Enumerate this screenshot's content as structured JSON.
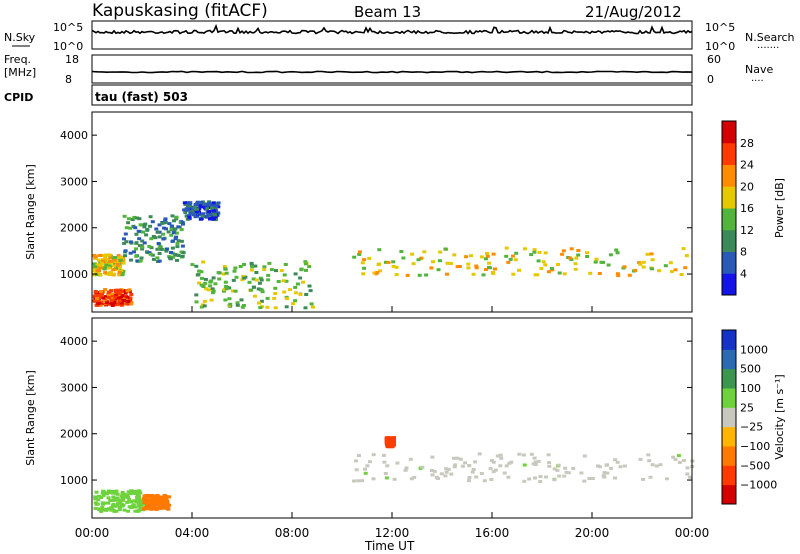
{
  "header": {
    "radar": "Kapuskasing (fitACF)",
    "beam": "Beam 13",
    "date": "21/Aug/2012"
  },
  "noise_panel": {
    "left_label": "N.Sky",
    "right_label": "N.Search",
    "left_ticks": [
      "10^5",
      "10^0"
    ],
    "right_ticks": [
      "10^5",
      "10^0"
    ],
    "right_dots": "......."
  },
  "freq_panel": {
    "left_label_1": "Freq.",
    "left_label_2": "[MHz]",
    "right_label": "Nave",
    "left_ticks": [
      "18",
      "8"
    ],
    "right_ticks": [
      "60",
      "0"
    ],
    "right_dots": "...."
  },
  "cpid": {
    "label": "CPID",
    "mode": "tau (fast) 503"
  },
  "chart_data": [
    {
      "type": "heatmap",
      "name": "power",
      "ylabel": "Slant Range [km]",
      "yticks": [
        "1000",
        "2000",
        "3000",
        "4000"
      ],
      "ylim": [
        180,
        4500
      ],
      "xlim_hours": [
        0,
        24
      ],
      "colorbar_label": "Power [dB]",
      "colorbar_ticks": [
        "4",
        "8",
        "12",
        "16",
        "20",
        "24",
        "28"
      ],
      "colors": [
        "#1414e6",
        "#2a5ab8",
        "#3c8a5a",
        "#52b43c",
        "#e6c800",
        "#ff8c00",
        "#ff3c00",
        "#d20000"
      ],
      "echo_bands": [
        {
          "t": [
            0.0,
            1.2
          ],
          "range_km": [
            1000,
            1450
          ],
          "power_db": 20
        },
        {
          "t": [
            1.2,
            3.6
          ],
          "range_km": [
            1300,
            2300
          ],
          "power_db": 12
        },
        {
          "t": [
            3.6,
            5.0
          ],
          "range_km": [
            2200,
            2600
          ],
          "power_db": 8
        },
        {
          "t": [
            0.0,
            1.5
          ],
          "range_km": [
            350,
            700
          ],
          "power_db": 28
        },
        {
          "t": [
            3.9,
            8.8
          ],
          "range_km": [
            300,
            1300
          ],
          "power_db": 16
        },
        {
          "t": [
            10.4,
            24.0
          ],
          "range_km": [
            1000,
            1600
          ],
          "power_db": 18
        }
      ]
    },
    {
      "type": "heatmap",
      "name": "velocity",
      "ylabel": "Slant Range [km]",
      "yticks": [
        "1000",
        "2000",
        "3000",
        "4000"
      ],
      "ylim": [
        180,
        4500
      ],
      "xlim_hours": [
        0,
        24
      ],
      "colorbar_label": "Velocity [m s⁻¹]",
      "colorbar_ticks": [
        "1000",
        "500",
        "100",
        "25",
        "−25",
        "−100",
        "−500",
        "−1000"
      ],
      "colors": [
        "#1432c8",
        "#2c6ab4",
        "#3c9650",
        "#6ed23c",
        "#c8c8be",
        "#ffb400",
        "#ff7800",
        "#ff3c00",
        "#d20000"
      ],
      "echo_bands": [
        {
          "t": [
            0.0,
            2.0
          ],
          "range_km": [
            350,
            800
          ],
          "velocity_ms": 100
        },
        {
          "t": [
            2.0,
            3.0
          ],
          "range_km": [
            400,
            700
          ],
          "velocity_ms": -100
        },
        {
          "t": [
            11.7,
            12.0
          ],
          "range_km": [
            1750,
            1950
          ],
          "velocity_ms": -500
        },
        {
          "t": [
            10.4,
            24.0
          ],
          "range_km": [
            1000,
            1600
          ],
          "velocity_ms": 0
        }
      ]
    }
  ],
  "xaxis": {
    "ticks": [
      "00:00",
      "04:00",
      "08:00",
      "12:00",
      "16:00",
      "20:00",
      "00:00"
    ],
    "label": "Time UT"
  },
  "palette": {
    "frame": "#000000",
    "panel_bg": "#ffffff"
  }
}
